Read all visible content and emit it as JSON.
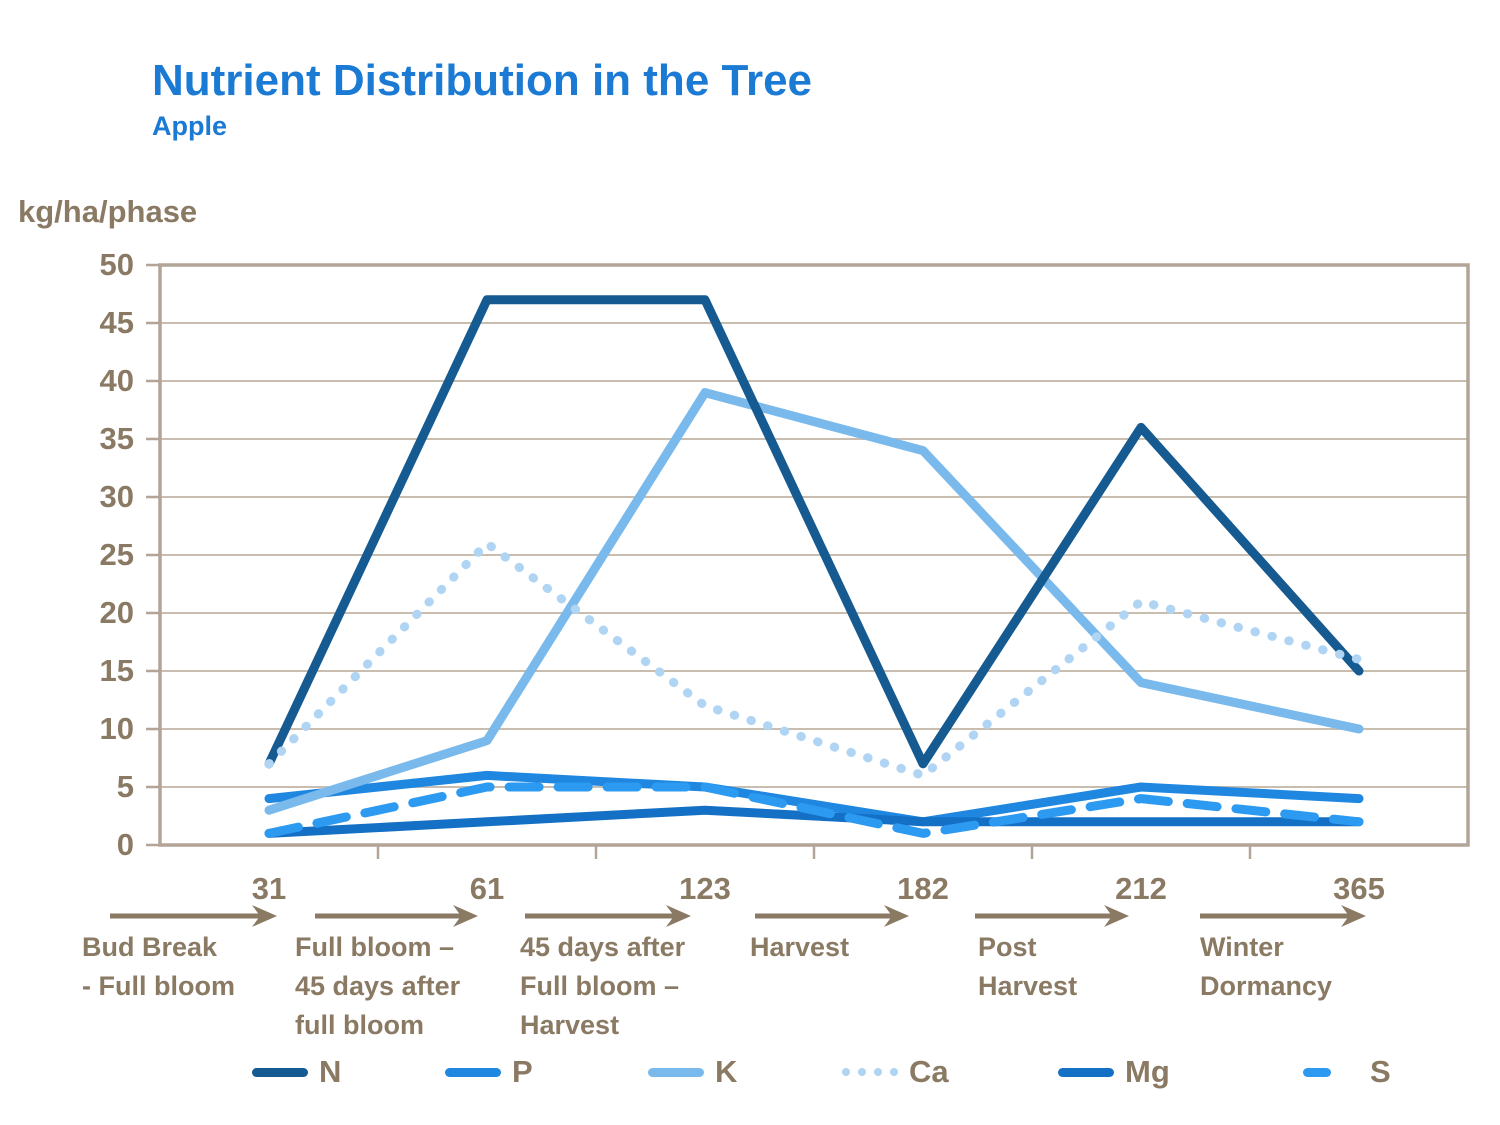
{
  "header": {
    "title": "Nutrient Distribution in the Tree",
    "subtitle": "Apple"
  },
  "y_axis": {
    "unit_label": "kg/ha/phase",
    "tick_labels": [
      "50",
      "45",
      "40",
      "35",
      "30",
      "25",
      "20",
      "15",
      "10",
      "5",
      "0"
    ]
  },
  "phases": [
    {
      "day": "31",
      "label_lines": [
        "Bud Break",
        "- Full bloom"
      ]
    },
    {
      "day": "61",
      "label_lines": [
        "Full bloom –",
        "45 days after",
        "full bloom"
      ]
    },
    {
      "day": "123",
      "label_lines": [
        "45 days after",
        "Full bloom –",
        "Harvest"
      ]
    },
    {
      "day": "182",
      "label_lines": [
        "Harvest"
      ]
    },
    {
      "day": "212",
      "label_lines": [
        "Post",
        "Harvest"
      ]
    },
    {
      "day": "365",
      "label_lines": [
        "Winter",
        "Dormancy"
      ]
    }
  ],
  "chart_data": {
    "type": "line",
    "title": "Nutrient Distribution in the Tree",
    "subtitle": "Apple",
    "ylabel": "kg/ha/phase",
    "ylim": [
      0,
      50
    ],
    "y_step": 5,
    "grid": "horizontal",
    "legend_position": "bottom",
    "x": [
      31,
      61,
      123,
      182,
      212,
      365
    ],
    "x_phase_labels": [
      "Bud Break - Full bloom",
      "Full bloom – 45 days after full bloom",
      "45 days after Full bloom – Harvest",
      "Harvest",
      "Post Harvest",
      "Winter Dormancy"
    ],
    "series": [
      {
        "name": "N",
        "style": "solid",
        "color": "#155a91",
        "values": [
          7,
          47,
          47,
          7,
          36,
          15
        ]
      },
      {
        "name": "P",
        "style": "solid",
        "color": "#1f87e0",
        "values": [
          4,
          6,
          5,
          2,
          5,
          4
        ]
      },
      {
        "name": "K",
        "style": "solid",
        "color": "#79b9ec",
        "values": [
          3,
          9,
          39,
          34,
          14,
          10
        ]
      },
      {
        "name": "Ca",
        "style": "dotted",
        "color": "#b0d5f4",
        "values": [
          7,
          26,
          12,
          6,
          21,
          16
        ]
      },
      {
        "name": "Mg",
        "style": "solid",
        "color": "#1470c4",
        "values": [
          1,
          2,
          3,
          2,
          2,
          2
        ]
      },
      {
        "name": "S",
        "style": "dashed",
        "color": "#2d9af2",
        "values": [
          1,
          5,
          5,
          1,
          4,
          2
        ]
      }
    ]
  },
  "colors": {
    "title_blue": "#1b7ad3",
    "axis_text_brown": "#8a7a64",
    "gridline": "#c9bdb0",
    "frame": "#b2a496"
  }
}
